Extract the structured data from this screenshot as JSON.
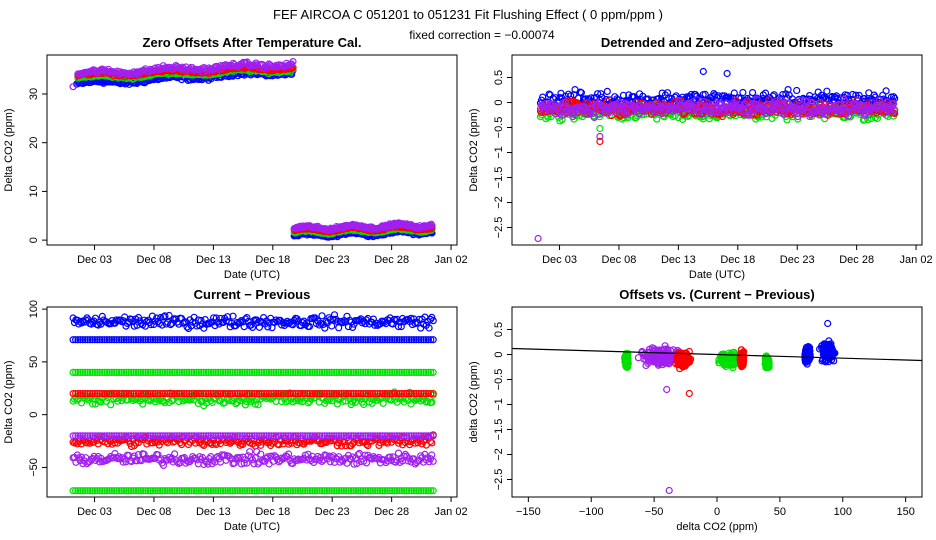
{
  "header": {
    "title": "FEF   AIRCOA C   051201 to 051231   Fit Flushing Effect ( 0 ppm/ppm )",
    "subtitle": "fixed correction = −0.00074"
  },
  "colors": {
    "blue": "#0000ff",
    "green": "#00e000",
    "red": "#ff0000",
    "purple": "#a020f0",
    "axis": "#000000"
  },
  "chart_data": [
    {
      "id": "p1",
      "type": "scatter",
      "title": "Zero Offsets After Temperature Cal.",
      "xlabel": "Date (UTC)",
      "ylabel": "Delta CO2 (ppm)",
      "xlim": [
        -2.0,
        32.5
      ],
      "ylim": [
        -1,
        38
      ],
      "x_ticks": [
        2,
        7,
        12,
        17,
        22,
        27,
        32
      ],
      "x_tick_labels": [
        "Dec 03",
        "Dec 08",
        "Dec 13",
        "Dec 18",
        "Dec 23",
        "Dec 28",
        "Jan 02"
      ],
      "y_ticks": [
        0,
        10,
        20,
        30
      ],
      "y_tick_labels": [
        "0",
        "10",
        "20",
        "30"
      ],
      "series": [
        {
          "name": "blue",
          "color": "#0000ff",
          "x_range": [
            0.5,
            30.4
          ],
          "segments": [
            {
              "x0": 0.5,
              "x1": 18.7,
              "y0": 32.0,
              "y1": 34.5,
              "jitter": 0.6
            },
            {
              "x0": 18.8,
              "x1": 30.4,
              "y0": 0.9,
              "y1": 1.7,
              "jitter": 0.4
            }
          ]
        },
        {
          "name": "green",
          "color": "#00e000",
          "segments": [
            {
              "x0": 0.6,
              "x1": 18.7,
              "y0": 33.3,
              "y1": 35.0,
              "jitter": 0.4
            },
            {
              "x0": 18.8,
              "x1": 30.4,
              "y0": 1.6,
              "y1": 2.2,
              "jitter": 0.3
            }
          ]
        },
        {
          "name": "red",
          "color": "#ff0000",
          "segments": [
            {
              "x0": 0.6,
              "x1": 18.7,
              "y0": 33.8,
              "y1": 35.4,
              "jitter": 0.4
            },
            {
              "x0": 18.8,
              "x1": 30.4,
              "y0": 2.0,
              "y1": 2.6,
              "jitter": 0.3
            }
          ]
        },
        {
          "name": "purple",
          "color": "#a020f0",
          "segments": [
            {
              "x0": 0.6,
              "x1": 18.7,
              "y0": 34.2,
              "y1": 36.2,
              "jitter": 0.7
            },
            {
              "x0": 18.8,
              "x1": 30.4,
              "y0": 2.4,
              "y1": 3.1,
              "jitter": 0.4
            }
          ]
        }
      ]
    },
    {
      "id": "p2",
      "type": "scatter",
      "title": "Detrended and Zero−adjusted Offsets",
      "xlabel": "Date (UTC)",
      "ylabel": "Delta CO2 (ppm)",
      "xlim": [
        -2.0,
        32.5
      ],
      "ylim": [
        -2.85,
        0.95
      ],
      "x_ticks": [
        2,
        7,
        12,
        17,
        22,
        27,
        32
      ],
      "x_tick_labels": [
        "Dec 03",
        "Dec 08",
        "Dec 13",
        "Dec 18",
        "Dec 23",
        "Dec 28",
        "Jan 02"
      ],
      "y_ticks": [
        0.5,
        0,
        -0.5,
        -1,
        -1.5,
        -2,
        -2.5
      ],
      "y_tick_labels": [
        "0.5",
        "0",
        "−0.5",
        "−1",
        "−1.5",
        "−2",
        "−2.5"
      ],
      "series": [
        {
          "name": "blue",
          "color": "#0000ff",
          "center": 0.05,
          "spread": 0.25
        },
        {
          "name": "green",
          "color": "#00e000",
          "center": -0.2,
          "spread": 0.2
        },
        {
          "name": "red",
          "color": "#ff0000",
          "center": -0.12,
          "spread": 0.2
        },
        {
          "name": "purple",
          "color": "#a020f0",
          "center": -0.12,
          "spread": 0.22
        }
      ],
      "outliers": [
        {
          "x": 0.2,
          "y": -2.72,
          "color": "#a020f0"
        },
        {
          "x": 5.4,
          "y": -0.52,
          "color": "#00e000"
        },
        {
          "x": 5.4,
          "y": -0.68,
          "color": "#a020f0"
        },
        {
          "x": 5.4,
          "y": -0.78,
          "color": "#ff0000"
        },
        {
          "x": 14.1,
          "y": 0.62,
          "color": "#0000ff"
        },
        {
          "x": 16.1,
          "y": 0.58,
          "color": "#0000ff"
        }
      ]
    },
    {
      "id": "p3",
      "type": "scatter",
      "title": "Current − Previous",
      "xlabel": "Date (UTC)",
      "ylabel": "Delta CO2 (ppm)",
      "xlim": [
        -2.0,
        32.5
      ],
      "ylim": [
        -78,
        102
      ],
      "x_ticks": [
        2,
        7,
        12,
        17,
        22,
        27,
        32
      ],
      "x_tick_labels": [
        "Dec 03",
        "Dec 08",
        "Dec 13",
        "Dec 18",
        "Dec 23",
        "Dec 28",
        "Jan 02"
      ],
      "y_ticks": [
        100,
        50,
        0,
        -50
      ],
      "y_tick_labels": [
        "100",
        "50",
        "0",
        "−50"
      ],
      "bands": [
        {
          "color": "#0000ff",
          "y": 71,
          "kind": "line"
        },
        {
          "color": "#0000ff",
          "y": 88,
          "kind": "scatter",
          "spread": 8
        },
        {
          "color": "#00e000",
          "y": 40,
          "kind": "line"
        },
        {
          "color": "#00e000",
          "y": 15,
          "kind": "scatter",
          "spread": 8
        },
        {
          "color": "#ff0000",
          "y": 20,
          "kind": "line"
        },
        {
          "color": "#ff0000",
          "y": -25,
          "kind": "scatter",
          "spread": 7
        },
        {
          "color": "#a020f0",
          "y": -20,
          "kind": "line"
        },
        {
          "color": "#a020f0",
          "y": -42,
          "kind": "scatter",
          "spread": 8
        },
        {
          "color": "#00e000",
          "y": -72,
          "kind": "line"
        }
      ]
    },
    {
      "id": "p4",
      "type": "scatter",
      "title": "Offsets vs. (Current − Previous)",
      "xlabel": "delta CO2 (ppm)",
      "ylabel": "delta CO2 (ppm)",
      "xlim": [
        -163,
        163
      ],
      "ylim": [
        -2.85,
        0.95
      ],
      "x_ticks": [
        -150,
        -100,
        -50,
        0,
        50,
        100,
        150
      ],
      "x_tick_labels": [
        "−150",
        "−100",
        "−50",
        "0",
        "50",
        "100",
        "150"
      ],
      "y_ticks": [
        0.5,
        0,
        -0.5,
        -1,
        -1.5,
        -2,
        -2.5
      ],
      "y_tick_labels": [
        "0.5",
        "0",
        "−0.5",
        "−1",
        "−1.5",
        "−2",
        "−2.5"
      ],
      "fit_line": {
        "x": [
          -163,
          163
        ],
        "y": [
          0.12,
          -0.12
        ]
      },
      "clusters": [
        {
          "color": "#00e000",
          "x": -72,
          "xspread": 2,
          "y": -0.1,
          "yspread": 0.2
        },
        {
          "color": "#a020f0",
          "x": -45,
          "xspread": 20,
          "y": -0.05,
          "yspread": 0.25
        },
        {
          "color": "#ff0000",
          "x": -27,
          "xspread": 7,
          "y": -0.1,
          "yspread": 0.2
        },
        {
          "color": "#00e000",
          "x": 10,
          "xspread": 10,
          "y": -0.1,
          "yspread": 0.2
        },
        {
          "color": "#ff0000",
          "x": 20,
          "xspread": 2,
          "y": -0.1,
          "yspread": 0.2
        },
        {
          "color": "#00e000",
          "x": 40,
          "xspread": 2,
          "y": -0.15,
          "yspread": 0.15
        },
        {
          "color": "#0000ff",
          "x": 72,
          "xspread": 3,
          "y": 0.0,
          "yspread": 0.22
        },
        {
          "color": "#0000ff",
          "x": 88,
          "xspread": 7,
          "y": 0.05,
          "yspread": 0.25
        }
      ],
      "outliers": [
        {
          "x": -38,
          "y": -2.72,
          "color": "#a020f0"
        },
        {
          "x": -40,
          "y": -0.7,
          "color": "#a020f0"
        },
        {
          "x": -22,
          "y": -0.78,
          "color": "#ff0000"
        },
        {
          "x": 88,
          "y": 0.62,
          "color": "#0000ff"
        }
      ]
    }
  ]
}
